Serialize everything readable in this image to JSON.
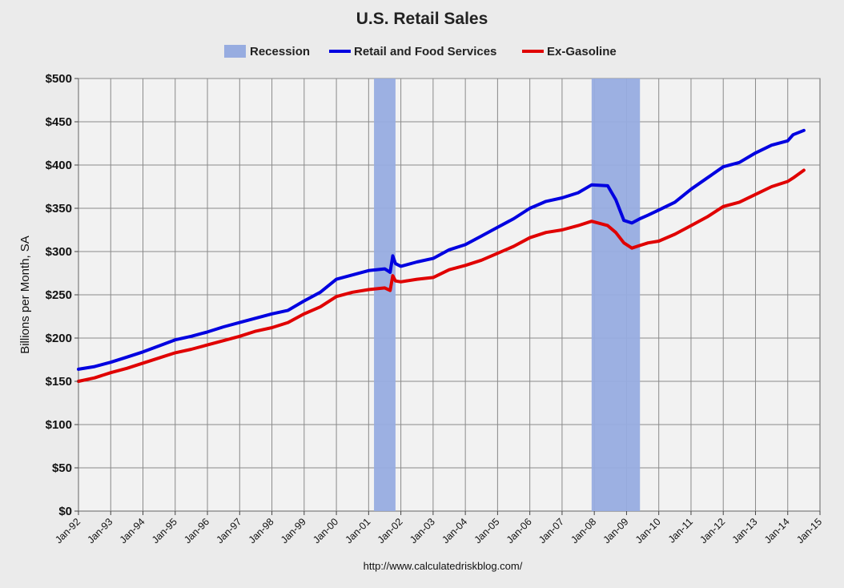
{
  "chart_data": {
    "type": "line",
    "title": "U.S. Retail Sales",
    "ylabel": "Billions per Month, SA",
    "xlabel": "",
    "source": "http://www.calculatedriskblog.com/",
    "xlim": [
      "1992-01",
      "2015-01"
    ],
    "ylim": [
      0,
      500
    ],
    "yticks": [
      0,
      50,
      100,
      150,
      200,
      250,
      300,
      350,
      400,
      450,
      500
    ],
    "ytick_labels": [
      "$0",
      "$50",
      "$100",
      "$150",
      "$200",
      "$250",
      "$300",
      "$350",
      "$400",
      "$450",
      "$500"
    ],
    "xtick_labels": [
      "Jan-92",
      "Jan-93",
      "Jan-94",
      "Jan-95",
      "Jan-96",
      "Jan-97",
      "Jan-98",
      "Jan-99",
      "Jan-00",
      "Jan-01",
      "Jan-02",
      "Jan-03",
      "Jan-04",
      "Jan-05",
      "Jan-06",
      "Jan-07",
      "Jan-08",
      "Jan-09",
      "Jan-10",
      "Jan-11",
      "Jan-12",
      "Jan-13",
      "Jan-14",
      "Jan-15"
    ],
    "grid": true,
    "legend_position": "top",
    "recessions": [
      {
        "start": "2001-03",
        "end": "2001-11"
      },
      {
        "start": "2007-12",
        "end": "2009-06"
      }
    ],
    "legend": [
      {
        "name": "Recession",
        "type": "band",
        "color": "#97ace0"
      },
      {
        "name": "Retail and Food Services",
        "type": "line",
        "color": "#0000e0"
      },
      {
        "name": "Ex-Gasoline",
        "type": "line",
        "color": "#e00000"
      }
    ],
    "series": [
      {
        "name": "Retail and Food Services",
        "color": "#0000e0",
        "points": [
          [
            "1992-01",
            164
          ],
          [
            "1992-07",
            167
          ],
          [
            "1993-01",
            172
          ],
          [
            "1993-07",
            178
          ],
          [
            "1994-01",
            184
          ],
          [
            "1994-07",
            191
          ],
          [
            "1995-01",
            198
          ],
          [
            "1995-07",
            202
          ],
          [
            "1996-01",
            207
          ],
          [
            "1996-07",
            213
          ],
          [
            "1997-01",
            218
          ],
          [
            "1997-07",
            223
          ],
          [
            "1998-01",
            228
          ],
          [
            "1998-07",
            232
          ],
          [
            "1999-01",
            243
          ],
          [
            "1999-07",
            253
          ],
          [
            "2000-01",
            268
          ],
          [
            "2000-07",
            273
          ],
          [
            "2001-01",
            278
          ],
          [
            "2001-07",
            280
          ],
          [
            "2001-09",
            276
          ],
          [
            "2001-10",
            295
          ],
          [
            "2001-11",
            286
          ],
          [
            "2002-01",
            283
          ],
          [
            "2002-07",
            288
          ],
          [
            "2003-01",
            292
          ],
          [
            "2003-07",
            302
          ],
          [
            "2004-01",
            308
          ],
          [
            "2004-07",
            318
          ],
          [
            "2005-01",
            328
          ],
          [
            "2005-07",
            338
          ],
          [
            "2006-01",
            350
          ],
          [
            "2006-07",
            358
          ],
          [
            "2007-01",
            362
          ],
          [
            "2007-07",
            368
          ],
          [
            "2007-12",
            377
          ],
          [
            "2008-06",
            376
          ],
          [
            "2008-09",
            360
          ],
          [
            "2008-12",
            336
          ],
          [
            "2009-03",
            333
          ],
          [
            "2009-06",
            338
          ],
          [
            "2009-09",
            342
          ],
          [
            "2010-01",
            348
          ],
          [
            "2010-07",
            357
          ],
          [
            "2011-01",
            372
          ],
          [
            "2011-07",
            385
          ],
          [
            "2012-01",
            398
          ],
          [
            "2012-07",
            403
          ],
          [
            "2013-01",
            414
          ],
          [
            "2013-07",
            423
          ],
          [
            "2014-01",
            428
          ],
          [
            "2014-03",
            435
          ],
          [
            "2014-07",
            440
          ]
        ]
      },
      {
        "name": "Ex-Gasoline",
        "color": "#e00000",
        "points": [
          [
            "1992-01",
            150
          ],
          [
            "1992-07",
            154
          ],
          [
            "1993-01",
            160
          ],
          [
            "1993-07",
            165
          ],
          [
            "1994-01",
            171
          ],
          [
            "1994-07",
            177
          ],
          [
            "1995-01",
            183
          ],
          [
            "1995-07",
            187
          ],
          [
            "1996-01",
            192
          ],
          [
            "1996-07",
            197
          ],
          [
            "1997-01",
            202
          ],
          [
            "1997-07",
            208
          ],
          [
            "1998-01",
            212
          ],
          [
            "1998-07",
            218
          ],
          [
            "1999-01",
            228
          ],
          [
            "1999-07",
            236
          ],
          [
            "2000-01",
            248
          ],
          [
            "2000-07",
            253
          ],
          [
            "2001-01",
            256
          ],
          [
            "2001-07",
            258
          ],
          [
            "2001-09",
            255
          ],
          [
            "2001-10",
            272
          ],
          [
            "2001-11",
            266
          ],
          [
            "2002-01",
            265
          ],
          [
            "2002-07",
            268
          ],
          [
            "2003-01",
            270
          ],
          [
            "2003-07",
            279
          ],
          [
            "2004-01",
            284
          ],
          [
            "2004-07",
            290
          ],
          [
            "2005-01",
            298
          ],
          [
            "2005-07",
            306
          ],
          [
            "2006-01",
            316
          ],
          [
            "2006-07",
            322
          ],
          [
            "2007-01",
            325
          ],
          [
            "2007-07",
            330
          ],
          [
            "2007-12",
            335
          ],
          [
            "2008-06",
            330
          ],
          [
            "2008-09",
            322
          ],
          [
            "2008-12",
            310
          ],
          [
            "2009-03",
            304
          ],
          [
            "2009-06",
            307
          ],
          [
            "2009-09",
            310
          ],
          [
            "2010-01",
            312
          ],
          [
            "2010-07",
            320
          ],
          [
            "2011-01",
            330
          ],
          [
            "2011-07",
            340
          ],
          [
            "2012-01",
            352
          ],
          [
            "2012-07",
            357
          ],
          [
            "2013-01",
            366
          ],
          [
            "2013-07",
            375
          ],
          [
            "2014-01",
            381
          ],
          [
            "2014-03",
            385
          ],
          [
            "2014-07",
            394
          ]
        ]
      }
    ]
  }
}
